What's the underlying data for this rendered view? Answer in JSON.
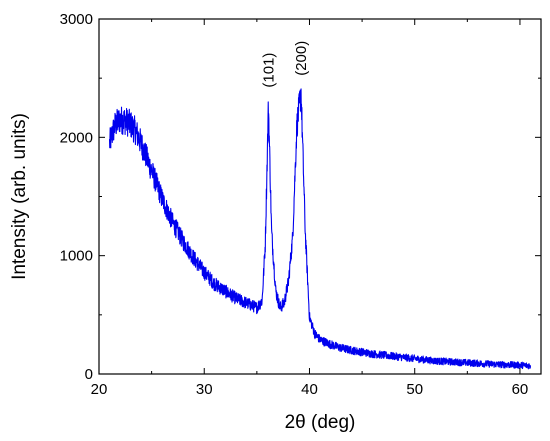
{
  "chart_data": {
    "type": "line",
    "xlabel": "2θ (deg)",
    "ylabel": "Intensity (arb. units)",
    "xlim": [
      20,
      62
    ],
    "ylim": [
      0,
      3000
    ],
    "xticks": [
      20,
      30,
      40,
      50,
      60
    ],
    "yticks": [
      0,
      1000,
      2000,
      3000
    ],
    "xtick_labels": [
      "20",
      "30",
      "40",
      "50",
      "60"
    ],
    "ytick_labels": [
      "0",
      "1000",
      "2000",
      "3000"
    ],
    "grid": false,
    "line_color": "#0000ee",
    "series": [
      {
        "x": [
          21,
          21.5,
          22,
          22.5,
          23,
          23.5,
          24,
          25,
          26,
          27,
          28,
          29,
          30,
          31,
          32,
          33,
          34,
          35,
          35.5,
          35.8,
          36.1,
          36.4,
          36.8,
          37.2,
          37.6,
          38,
          38.4,
          38.8,
          39.2,
          39.6,
          40,
          40.5,
          41,
          42,
          43,
          44,
          45,
          46,
          48,
          50,
          52,
          54,
          56,
          58,
          60,
          61
        ],
        "y": [
          1950,
          2100,
          2150,
          2140,
          2110,
          2050,
          1950,
          1720,
          1480,
          1280,
          1120,
          980,
          860,
          760,
          700,
          640,
          600,
          560,
          620,
          1100,
          2280,
          1200,
          700,
          560,
          600,
          780,
          1150,
          2100,
          2380,
          1200,
          480,
          340,
          290,
          250,
          220,
          200,
          185,
          170,
          150,
          130,
          110,
          100,
          90,
          80,
          75,
          70
        ]
      }
    ],
    "annotations": [
      {
        "text": "(101)",
        "x": 36.1,
        "y": 2420
      },
      {
        "text": "(200)",
        "x": 39.2,
        "y": 2520
      }
    ]
  }
}
